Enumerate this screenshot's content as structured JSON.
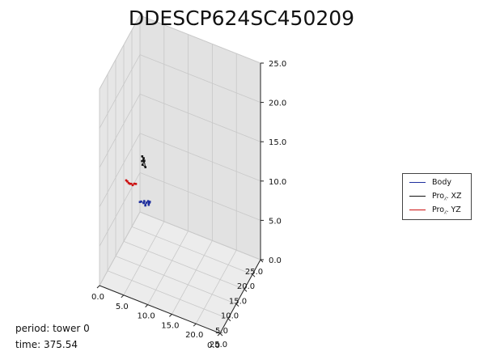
{
  "chart_data": {
    "type": "scatter",
    "title": "DDESCP624SC450209",
    "axes": {
      "x": {
        "ticks": [
          "0.0",
          "5.0",
          "10.0",
          "15.0",
          "20.0",
          "25.0"
        ],
        "range": [
          0,
          25
        ]
      },
      "y": {
        "ticks": [
          "0.0",
          "5.0",
          "10.0",
          "15.0",
          "20.0",
          "25.0"
        ],
        "range": [
          0,
          25
        ]
      },
      "z": {
        "ticks": [
          "0.0",
          "5.0",
          "10.0",
          "15.0",
          "20.0",
          "25.0"
        ],
        "range": [
          0,
          25
        ]
      }
    },
    "grid": true,
    "legend": {
      "placement": "right",
      "entries": [
        {
          "label": "Body",
          "color": "#1f2f9e"
        },
        {
          "label": "Pro⁁. XZ",
          "color": "#111111"
        },
        {
          "label": "Pro⁁. YZ",
          "color": "#cc1111"
        }
      ]
    },
    "series": [
      {
        "name": "Body",
        "color": "#1f2f9e",
        "points": [
          [
            2.0,
            19.0,
            4.0
          ],
          [
            2.4,
            18.6,
            4.3
          ],
          [
            2.8,
            18.9,
            4.1
          ],
          [
            3.1,
            18.4,
            4.6
          ],
          [
            3.4,
            18.2,
            4.2
          ],
          [
            3.8,
            17.8,
            4.8
          ],
          [
            4.2,
            17.5,
            5.2
          ],
          [
            4.5,
            17.0,
            5.0
          ],
          [
            4.8,
            16.6,
            5.5
          ],
          [
            5.0,
            16.2,
            5.8
          ]
        ]
      },
      {
        "name": "Pro⁁. XZ",
        "color": "#111111",
        "points": [
          [
            0.6,
            24.5,
            6.8
          ],
          [
            0.9,
            24.6,
            7.2
          ],
          [
            0.7,
            24.3,
            7.5
          ],
          [
            1.1,
            24.4,
            7.0
          ],
          [
            0.8,
            24.2,
            6.5
          ],
          [
            1.3,
            24.5,
            6.2
          ],
          [
            1.0,
            24.6,
            6.9
          ]
        ]
      },
      {
        "name": "Pro⁁. YZ",
        "color": "#cc1111",
        "points": [
          [
            0.0,
            22.5,
            4.5
          ],
          [
            0.0,
            21.5,
            4.9
          ],
          [
            0.0,
            20.5,
            5.1
          ],
          [
            0.0,
            19.6,
            5.6
          ],
          [
            0.0,
            18.8,
            5.9
          ],
          [
            0.0,
            18.0,
            6.3
          ],
          [
            0.0,
            17.2,
            6.8
          ],
          [
            0.0,
            16.5,
            7.2
          ]
        ]
      }
    ]
  },
  "info": {
    "period": "period: tower 0",
    "time": "time: 375.54"
  }
}
